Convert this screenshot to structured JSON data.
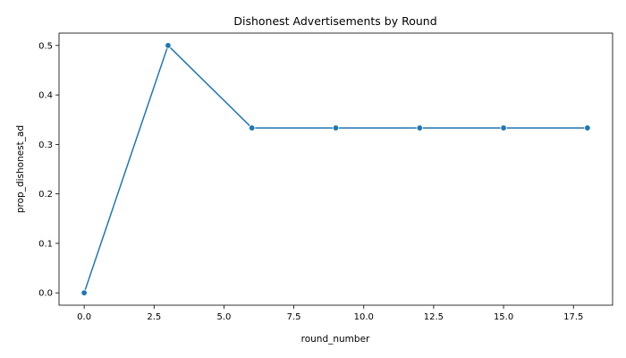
{
  "chart_data": {
    "type": "line",
    "title": "Dishonest Advertisements by Round",
    "xlabel": "round_number",
    "ylabel": "prop_dishonest_ad",
    "x": [
      0,
      3,
      6,
      9,
      12,
      15,
      18
    ],
    "series": [
      {
        "values": [
          0.0,
          0.5,
          0.3333,
          0.3333,
          0.3333,
          0.3333,
          0.3333
        ],
        "color": "#1f77b4"
      }
    ],
    "xlim": [
      -0.9,
      18.9
    ],
    "ylim": [
      -0.025,
      0.525
    ],
    "xticks": [
      0.0,
      2.5,
      5.0,
      7.5,
      10.0,
      12.5,
      15.0,
      17.5
    ],
    "xtick_labels": [
      "0.0",
      "2.5",
      "5.0",
      "7.5",
      "10.0",
      "12.5",
      "15.0",
      "17.5"
    ],
    "yticks": [
      0.0,
      0.1,
      0.2,
      0.3,
      0.4,
      0.5
    ],
    "ytick_labels": [
      "0.0",
      "0.1",
      "0.2",
      "0.3",
      "0.4",
      "0.5"
    ],
    "grid": false,
    "markers": true
  }
}
